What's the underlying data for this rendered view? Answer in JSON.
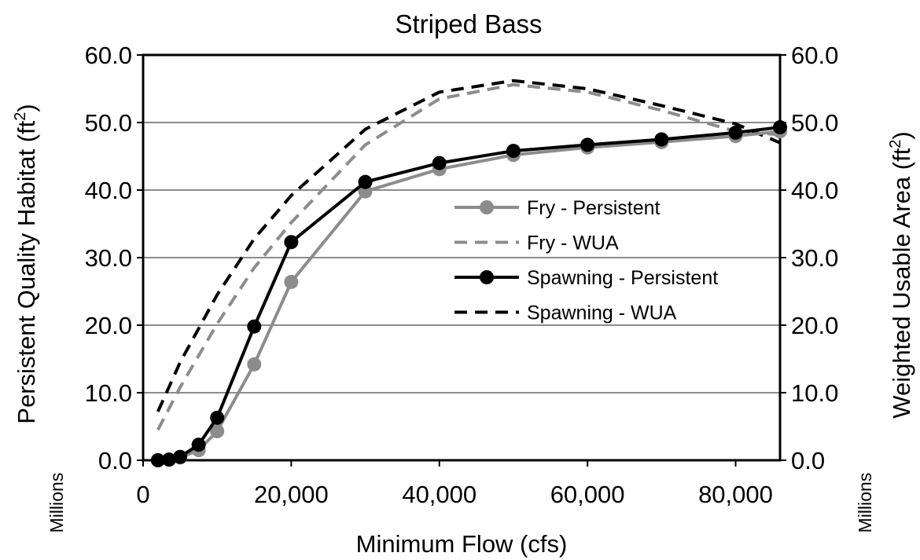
{
  "chart_data": {
    "type": "line",
    "title": "Striped Bass",
    "xlabel": "Minimum Flow (cfs)",
    "ylabel_left_main": "Persistent Quality Habitat (ft",
    "ylabel_left_sup": "2",
    "ylabel_left_tail": ")",
    "ylabel_right_main": "Weighted Usable Area (ft",
    "ylabel_right_sup": "2",
    "ylabel_right_tail": ")",
    "y_units_left": "Millions",
    "y_units_right": "Millions",
    "xlim": [
      0,
      86000
    ],
    "ylim": [
      0,
      60
    ],
    "y2lim": [
      0,
      60
    ],
    "x_ticks": [
      0,
      20000,
      40000,
      60000,
      80000
    ],
    "x_tick_labels": [
      "0",
      "20,000",
      "40,000",
      "60,000",
      "80,000"
    ],
    "y_ticks": [
      0,
      10,
      20,
      30,
      40,
      50,
      60
    ],
    "y_tick_labels": [
      "0.0",
      "10.0",
      "20.0",
      "30.0",
      "40.0",
      "50.0",
      "60.0"
    ],
    "y2_tick_labels": [
      "0.0",
      "10.0",
      "20.0",
      "30.0",
      "40.0",
      "50.0",
      "60.0"
    ],
    "grid": "horizontal",
    "legend_position": "center-right",
    "series": [
      {
        "name": "Fry - Persistent",
        "axis": "left",
        "color": "#8c8c8c",
        "line": "solid",
        "marker": "circle",
        "x": [
          2000,
          3500,
          5000,
          7500,
          10000,
          15000,
          20000,
          30000,
          40000,
          50000,
          60000,
          70000,
          80000,
          86000
        ],
        "y": [
          0.0,
          0.1,
          0.4,
          1.5,
          4.3,
          14.2,
          26.4,
          39.8,
          43.1,
          45.2,
          46.3,
          47.1,
          48.0,
          48.7
        ]
      },
      {
        "name": "Fry - WUA",
        "axis": "right",
        "color": "#8c8c8c",
        "line": "dashed",
        "marker": "none",
        "x": [
          2000,
          5000,
          10000,
          15000,
          20000,
          30000,
          40000,
          50000,
          60000,
          70000,
          80000,
          86000
        ],
        "y": [
          4.5,
          10.8,
          20.2,
          28.5,
          35.2,
          46.7,
          53.5,
          55.6,
          54.5,
          51.8,
          48.7,
          48.2
        ]
      },
      {
        "name": "Spawning - Persistent",
        "axis": "left",
        "color": "#000000",
        "line": "solid",
        "marker": "circle",
        "x": [
          2000,
          3500,
          5000,
          7500,
          10000,
          15000,
          20000,
          30000,
          40000,
          50000,
          60000,
          70000,
          80000,
          86000
        ],
        "y": [
          0.0,
          0.1,
          0.5,
          2.3,
          6.3,
          19.8,
          32.3,
          41.2,
          44.0,
          45.8,
          46.7,
          47.5,
          48.5,
          49.3
        ]
      },
      {
        "name": "Spawning - WUA",
        "axis": "right",
        "color": "#000000",
        "line": "dashed",
        "marker": "none",
        "x": [
          2000,
          5000,
          10000,
          15000,
          20000,
          30000,
          40000,
          50000,
          60000,
          70000,
          80000,
          86000
        ],
        "y": [
          7.2,
          14.5,
          24.5,
          32.8,
          39.2,
          49.0,
          54.5,
          56.2,
          55.0,
          52.5,
          49.8,
          47.0
        ]
      }
    ]
  }
}
